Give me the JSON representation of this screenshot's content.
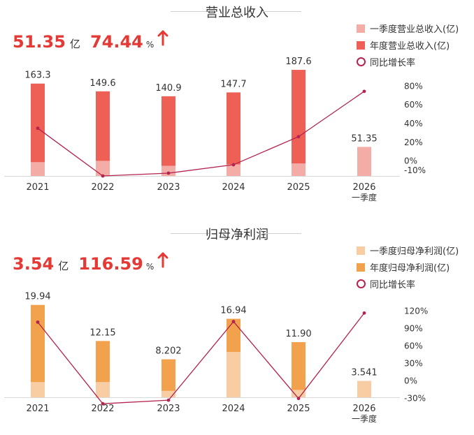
{
  "charts": [
    {
      "id": "revenue",
      "title": "营业总收入",
      "headline": {
        "value": "51.35",
        "unit": "亿",
        "pct": "74.44",
        "pct_unit": "%",
        "arrow_color": "#e53935"
      },
      "legend": [
        {
          "label": "一季度营业总收入(亿)",
          "color": "#f4aca6",
          "shape": "square"
        },
        {
          "label": "年度营业总收入(亿)",
          "color": "#ee5f55",
          "shape": "square"
        },
        {
          "label": "同比增长率",
          "color": "#b2234e",
          "shape": "circle"
        }
      ],
      "right_axis_ticks": [
        "80%",
        "60%",
        "40%",
        "20%",
        "0%",
        "-10%"
      ]
    },
    {
      "id": "net-profit",
      "title": "归母净利润",
      "headline": {
        "value": "3.54",
        "unit": "亿",
        "pct": "116.59",
        "pct_unit": "%",
        "arrow_color": "#e53935"
      },
      "legend": [
        {
          "label": "一季度归母净利润(亿)",
          "color": "#f8cda4",
          "shape": "square"
        },
        {
          "label": "年度归母净利润(亿)",
          "color": "#f2a14c",
          "shape": "square"
        },
        {
          "label": "同比增长率",
          "color": "#b2234e",
          "shape": "circle"
        }
      ],
      "right_axis_ticks": [
        "120%",
        "90%",
        "60%",
        "30%",
        "0%",
        "-30%"
      ]
    }
  ],
  "chart_data": [
    {
      "type": "bar",
      "title": "营业总收入",
      "categories": [
        "2021",
        "2022",
        "2023",
        "2024",
        "2025",
        "2026\n一季度"
      ],
      "series": [
        {
          "name": "年度营业总收入(亿)",
          "values": [
            163.3,
            149.6,
            140.9,
            147.7,
            187.6,
            null
          ],
          "labels": [
            "163.3",
            "149.6",
            "140.9",
            "147.7",
            "187.6",
            null
          ],
          "color": "#ee5f55"
        },
        {
          "name": "一季度营业总收入(亿)",
          "values": [
            24.5,
            26.8,
            18.0,
            20.5,
            22.2,
            51.35
          ],
          "labels": [
            null,
            null,
            null,
            null,
            null,
            "51.35"
          ],
          "color": "#f4aca6"
        },
        {
          "name": "同比增长率",
          "axis": "right",
          "values": [
            35,
            -16,
            -13,
            -4,
            26,
            74.44
          ],
          "color": "#b2234e"
        }
      ],
      "y_left_range": [
        0,
        200
      ],
      "y_right_range": [
        -16,
        90
      ],
      "grid": false
    },
    {
      "type": "bar",
      "title": "归母净利润",
      "categories": [
        "2021",
        "2022",
        "2023",
        "2024",
        "2025",
        "2026\n一季度"
      ],
      "series": [
        {
          "name": "年度归母净利润(亿)",
          "values": [
            19.94,
            12.15,
            8.202,
            16.94,
            11.9,
            null
          ],
          "labels": [
            "19.94",
            "12.15",
            "8.202",
            "16.94",
            "11.90",
            null
          ],
          "color": "#f2a14c"
        },
        {
          "name": "一季度归母净利润(亿)",
          "values": [
            3.3,
            3.3,
            1.4,
            9.8,
            1.6,
            3.541
          ],
          "labels": [
            null,
            null,
            null,
            null,
            null,
            "3.541"
          ],
          "color": "#f8cda4"
        },
        {
          "name": "同比增长率",
          "axis": "right",
          "values": [
            101,
            -39,
            -33,
            102,
            -30,
            116.59
          ],
          "color": "#b2234e"
        }
      ],
      "y_left_range": [
        0,
        22
      ],
      "y_right_range": [
        -40,
        135
      ],
      "grid": false
    }
  ]
}
